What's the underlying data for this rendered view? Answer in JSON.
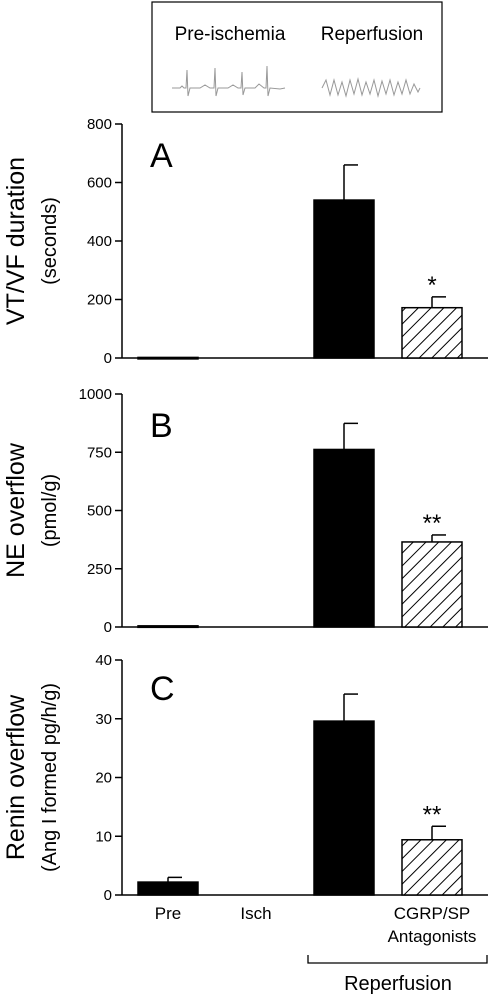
{
  "inset": {
    "labels": [
      "Pre-ischemia",
      "Reperfusion"
    ]
  },
  "chart_data": [
    {
      "type": "bar",
      "panel_letter": "A",
      "ylabel": [
        "VT/VF duration",
        "(seconds)"
      ],
      "ylim": [
        0,
        800
      ],
      "yticks": [
        0,
        200,
        400,
        600,
        800
      ],
      "categories": [
        "Pre",
        "Isch",
        "",
        "CGRP/SP Antagonists"
      ],
      "values": [
        2,
        0,
        540,
        172
      ],
      "errors": [
        0,
        0,
        120,
        37
      ],
      "fills": [
        "solid",
        "solid",
        "solid",
        "hatch"
      ],
      "annotations": [
        "",
        "",
        "",
        "*"
      ]
    },
    {
      "type": "bar",
      "panel_letter": "B",
      "ylabel": [
        "NE overflow",
        "(pmol/g)"
      ],
      "ylim": [
        0,
        1000
      ],
      "yticks": [
        0,
        250,
        500,
        750,
        1000
      ],
      "categories": [
        "Pre",
        "Isch",
        "",
        "CGRP/SP Antagonists"
      ],
      "values": [
        5,
        0,
        762,
        365
      ],
      "errors": [
        0,
        0,
        112,
        30
      ],
      "fills": [
        "solid",
        "solid",
        "solid",
        "hatch"
      ],
      "annotations": [
        "",
        "",
        "",
        "**"
      ]
    },
    {
      "type": "bar",
      "panel_letter": "C",
      "ylabel": [
        "Renin overflow",
        "(Ang I formed pg/h/g)"
      ],
      "ylim": [
        0,
        40
      ],
      "yticks": [
        0,
        10,
        20,
        30,
        40
      ],
      "categories": [
        "Pre",
        "Isch",
        "",
        "CGRP/SP Antagonists"
      ],
      "values": [
        2.2,
        0,
        29.6,
        9.4
      ],
      "errors": [
        0.8,
        0,
        4.6,
        2.3
      ],
      "fills": [
        "solid",
        "solid",
        "solid",
        "hatch"
      ],
      "annotations": [
        "",
        "",
        "",
        "**"
      ]
    }
  ],
  "x_axis": {
    "tick_labels": [
      [
        "Pre"
      ],
      [
        "Isch"
      ],
      [],
      [
        "CGRP/SP",
        "Antagonists"
      ]
    ],
    "group_label": "Reperfusion"
  }
}
